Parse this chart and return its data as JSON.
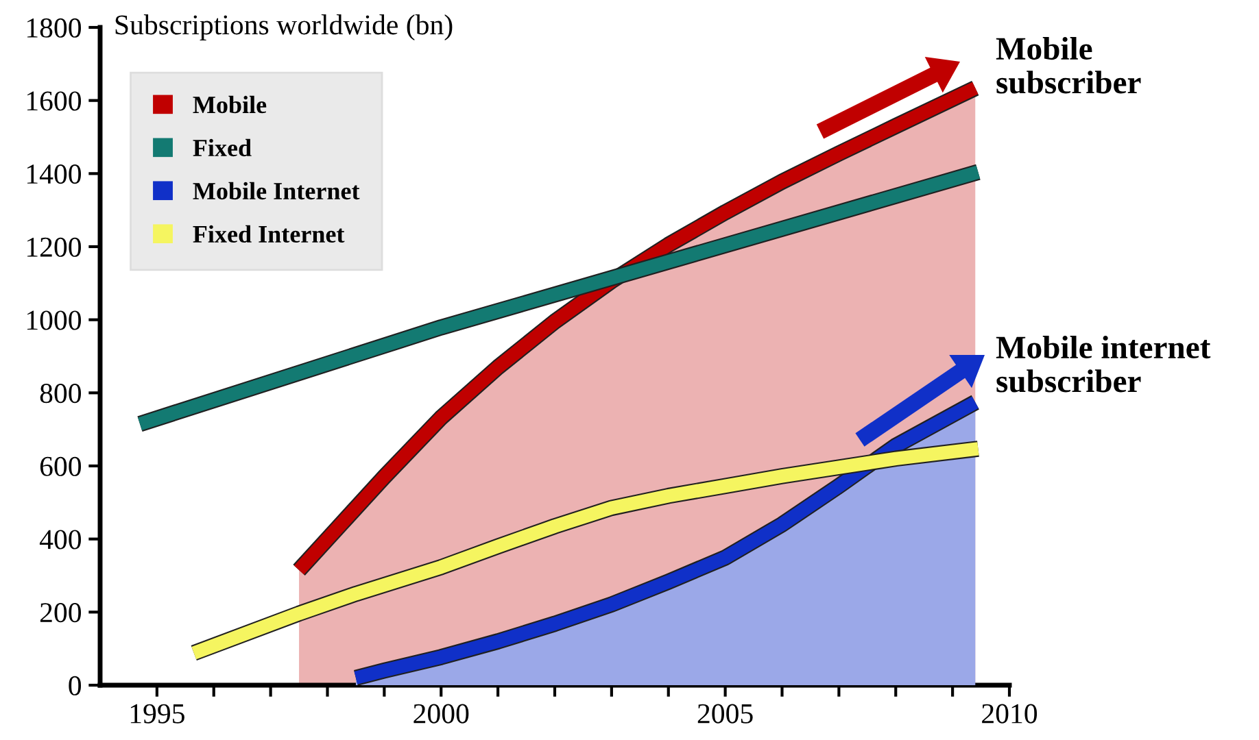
{
  "chart_data": {
    "type": "line",
    "ylabel": "Subscriptions worldwide (bn)",
    "xlim": [
      1994,
      2010
    ],
    "ylim": [
      0,
      1800
    ],
    "xticks": [
      1995,
      {
        "value": 1996,
        "label": null
      },
      {
        "value": 1997,
        "label": null
      },
      {
        "value": 1998,
        "label": null
      },
      {
        "value": 1999,
        "label": null
      },
      2000,
      {
        "value": 2001,
        "label": null
      },
      {
        "value": 2002,
        "label": null
      },
      {
        "value": 2003,
        "label": null
      },
      {
        "value": 2004,
        "label": null
      },
      2005,
      {
        "value": 2006,
        "label": null
      },
      {
        "value": 2007,
        "label": null
      },
      {
        "value": 2008,
        "label": null
      },
      {
        "value": 2009,
        "label": null
      },
      2010
    ],
    "yticks": [
      0,
      200,
      400,
      600,
      800,
      1000,
      1200,
      1400,
      1600,
      1800
    ],
    "grid": false,
    "legend": "top left",
    "series": [
      {
        "name": "Mobile",
        "type": "area",
        "color": "#c00000",
        "x": [
          1997.5,
          1999,
          2000,
          2001,
          2002,
          2003,
          2004,
          2005,
          2006,
          2007,
          2008,
          2009.4
        ],
        "values": [
          315,
          570,
          732,
          870,
          995,
          1106,
          1205,
          1294,
          1378,
          1455,
          1530,
          1634
        ]
      },
      {
        "name": "Fixed",
        "color": "#137a72",
        "x": [
          1994.7,
          2000,
          2009.45
        ],
        "values": [
          715,
          979,
          1404
        ]
      },
      {
        "name": "Mobile Internet",
        "type": "area",
        "color": "#1030c8",
        "x": [
          1998.5,
          1999,
          2000,
          2001,
          2002,
          2003,
          2004,
          2005,
          2006,
          2007,
          2008,
          2009.4
        ],
        "values": [
          20,
          40,
          77,
          120,
          168,
          221,
          283,
          349,
          440,
          545,
          655,
          774
        ]
      },
      {
        "name": "Fixed Internet",
        "color": "#f5f560",
        "x": [
          1995.65,
          1997.5,
          1998.5,
          2000,
          2001,
          2002,
          2003,
          2004,
          2005,
          2006,
          2007,
          2008,
          2009.45
        ],
        "values": [
          88,
          196,
          250,
          323,
          380,
          435,
          485,
          518,
          545,
          572,
          596,
          620,
          647
        ]
      }
    ],
    "annotations": [
      "Mobile\nsubscriber",
      "Mobile internet\nsubscriber"
    ]
  }
}
